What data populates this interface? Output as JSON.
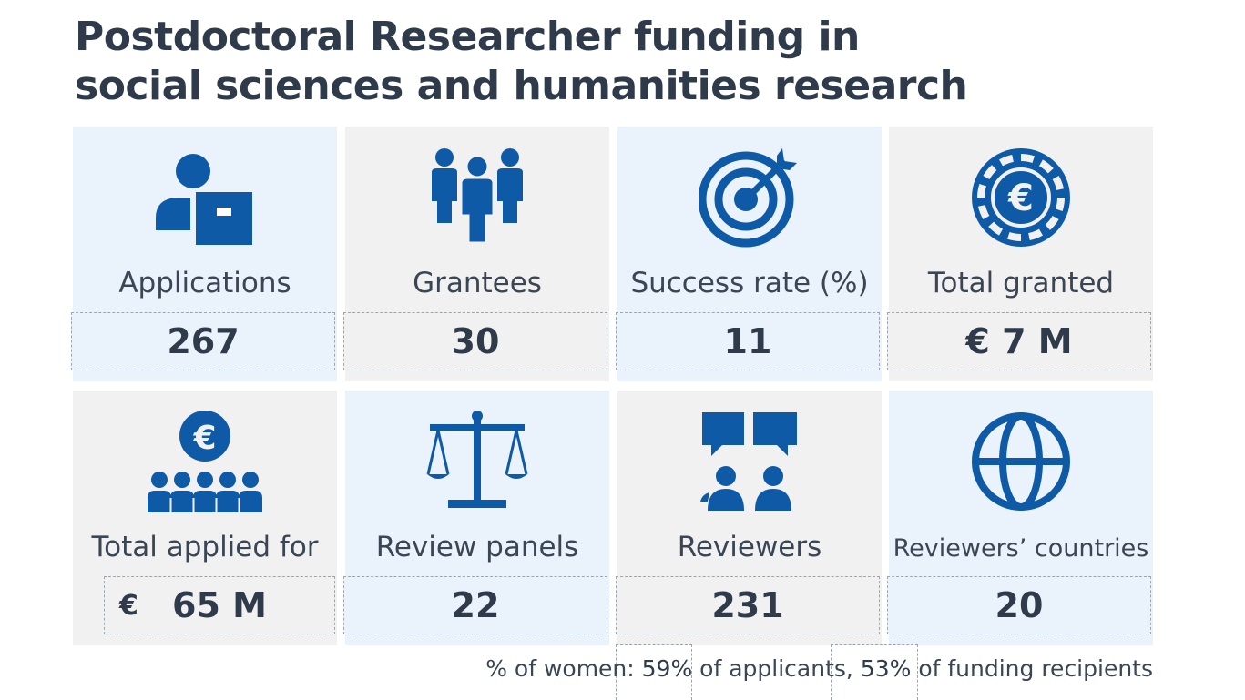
{
  "title": {
    "line1": "Postdoctoral Researcher funding in",
    "line2": "social sciences and humanities research"
  },
  "colors": {
    "icon": "#0e5aa7",
    "text": "#2f3b4b",
    "tile_blue": "#eaf3fc",
    "tile_grey": "#f1f1f1"
  },
  "tiles": [
    {
      "label": "Applications",
      "value": "267",
      "icon": "applicant-with-box-icon"
    },
    {
      "label": "Grantees",
      "value": "30",
      "icon": "group-of-people-icon"
    },
    {
      "label": "Success rate (%)",
      "value": "11",
      "icon": "target-with-arrow-icon"
    },
    {
      "label": "Total granted",
      "value": "€ 7 M",
      "icon": "euro-coin-icon"
    },
    {
      "label": "Total applied for",
      "currency": "€",
      "value": "65 M",
      "icon": "euro-over-people-icon"
    },
    {
      "label": "Review panels",
      "value": "22",
      "icon": "balance-scale-icon"
    },
    {
      "label": "Reviewers",
      "value": "231",
      "icon": "speech-bubbles-people-icon"
    },
    {
      "label": "Reviewers’ countries",
      "value": "20",
      "icon": "globe-icon"
    }
  ],
  "footer": {
    "prefix": "% of women: ",
    "women_applicants": "59%",
    "middle": " of applicants, ",
    "women_recipients": "53%",
    "suffix": " of funding recipients"
  }
}
